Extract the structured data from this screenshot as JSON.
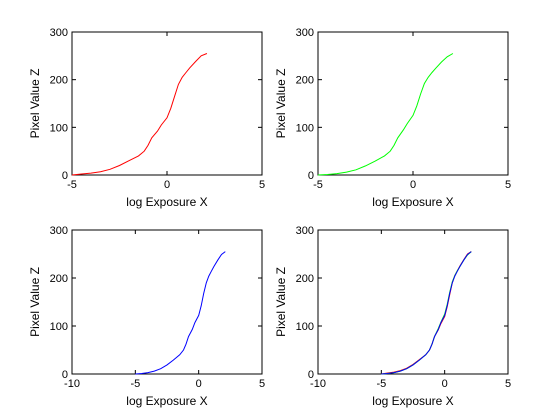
{
  "chart_data": [
    {
      "type": "line",
      "xlabel": "log Exposure X",
      "ylabel": "Pixel Value Z",
      "xlim": [
        -5,
        5
      ],
      "ylim": [
        0,
        300
      ],
      "xticks": [
        -5,
        0,
        5
      ],
      "yticks": [
        0,
        100,
        200,
        300
      ],
      "series": [
        {
          "color": "#ff0000",
          "x": [
            -5.0,
            -4.5,
            -4.0,
            -3.5,
            -3.0,
            -2.5,
            -2.0,
            -1.5,
            -1.2,
            -1.0,
            -0.8,
            -0.5,
            -0.3,
            0.0,
            0.2,
            0.4,
            0.6,
            0.8,
            1.0,
            1.2,
            1.5,
            1.8,
            2.1
          ],
          "y": [
            0,
            2,
            4,
            7,
            12,
            20,
            30,
            40,
            50,
            62,
            78,
            92,
            105,
            120,
            140,
            165,
            190,
            205,
            215,
            225,
            238,
            250,
            255
          ]
        }
      ]
    },
    {
      "type": "line",
      "xlabel": "log Exposure X",
      "ylabel": "Pixel Value Z",
      "xlim": [
        -5,
        5
      ],
      "ylim": [
        0,
        300
      ],
      "xticks": [
        -5,
        0,
        5
      ],
      "yticks": [
        0,
        100,
        200,
        300
      ],
      "series": [
        {
          "color": "#00ff00",
          "x": [
            -5.0,
            -4.5,
            -4.0,
            -3.5,
            -3.0,
            -2.5,
            -2.0,
            -1.5,
            -1.2,
            -1.0,
            -0.8,
            -0.5,
            -0.3,
            0.0,
            0.2,
            0.4,
            0.6,
            0.8,
            1.0,
            1.2,
            1.5,
            1.8,
            2.1
          ],
          "y": [
            0,
            1,
            3,
            6,
            11,
            19,
            29,
            40,
            50,
            62,
            78,
            95,
            108,
            125,
            145,
            170,
            192,
            205,
            215,
            224,
            237,
            248,
            255
          ]
        }
      ]
    },
    {
      "type": "line",
      "xlabel": "log Exposure X",
      "ylabel": "Pixel Value Z",
      "xlim": [
        -10,
        5
      ],
      "ylim": [
        0,
        300
      ],
      "xticks": [
        -10,
        -5,
        0,
        5
      ],
      "yticks": [
        0,
        100,
        200,
        300
      ],
      "series": [
        {
          "color": "#0000ff",
          "x": [
            -5.0,
            -4.5,
            -4.0,
            -3.5,
            -3.0,
            -2.5,
            -2.0,
            -1.5,
            -1.2,
            -1.0,
            -0.8,
            -0.5,
            -0.3,
            0.0,
            0.2,
            0.4,
            0.6,
            0.8,
            1.0,
            1.2,
            1.5,
            1.8,
            2.1
          ],
          "y": [
            0,
            1,
            3,
            6,
            11,
            19,
            29,
            40,
            50,
            62,
            78,
            93,
            107,
            122,
            142,
            168,
            190,
            204,
            214,
            224,
            237,
            249,
            255
          ]
        }
      ]
    },
    {
      "type": "line",
      "xlabel": "log Exposure X",
      "ylabel": "Pixel Value Z",
      "xlim": [
        -10,
        5
      ],
      "ylim": [
        0,
        300
      ],
      "xticks": [
        -10,
        -5,
        0,
        5
      ],
      "yticks": [
        0,
        100,
        200,
        300
      ],
      "series": [
        {
          "color": "#ff0000",
          "x": [
            -5.0,
            -4.5,
            -4.0,
            -3.5,
            -3.0,
            -2.5,
            -2.0,
            -1.5,
            -1.2,
            -1.0,
            -0.8,
            -0.5,
            -0.3,
            0.0,
            0.2,
            0.4,
            0.6,
            0.8,
            1.0,
            1.2,
            1.5,
            1.8,
            2.1
          ],
          "y": [
            0,
            2,
            4,
            7,
            12,
            20,
            30,
            40,
            50,
            62,
            78,
            92,
            105,
            120,
            140,
            165,
            190,
            205,
            215,
            225,
            238,
            250,
            255
          ]
        },
        {
          "color": "#00ff00",
          "x": [
            -5.0,
            -4.5,
            -4.0,
            -3.5,
            -3.0,
            -2.5,
            -2.0,
            -1.5,
            -1.2,
            -1.0,
            -0.8,
            -0.5,
            -0.3,
            0.0,
            0.2,
            0.4,
            0.6,
            0.8,
            1.0,
            1.2,
            1.5,
            1.8,
            2.1
          ],
          "y": [
            0,
            1,
            3,
            6,
            11,
            19,
            29,
            40,
            50,
            62,
            78,
            95,
            108,
            125,
            145,
            170,
            192,
            205,
            215,
            224,
            237,
            248,
            255
          ]
        },
        {
          "color": "#0000ff",
          "x": [
            -5.0,
            -4.5,
            -4.0,
            -3.5,
            -3.0,
            -2.5,
            -2.0,
            -1.5,
            -1.2,
            -1.0,
            -0.8,
            -0.5,
            -0.3,
            0.0,
            0.2,
            0.4,
            0.6,
            0.8,
            1.0,
            1.2,
            1.5,
            1.8,
            2.1
          ],
          "y": [
            0,
            1,
            3,
            6,
            11,
            19,
            29,
            40,
            50,
            62,
            78,
            93,
            107,
            122,
            142,
            168,
            190,
            204,
            214,
            224,
            237,
            249,
            255
          ]
        }
      ]
    }
  ]
}
